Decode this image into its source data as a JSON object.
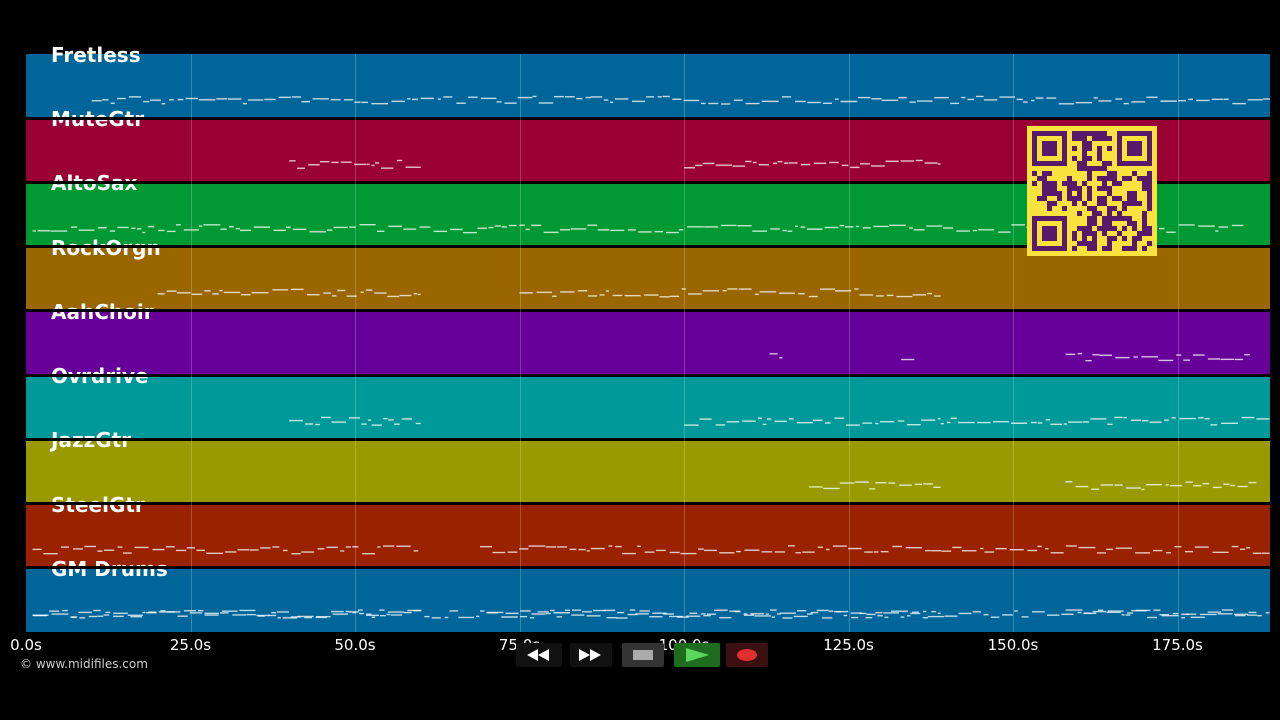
{
  "tracks": [
    {
      "name": "Fretless",
      "color": "#006699"
    },
    {
      "name": "MuteGtr",
      "color": "#990033"
    },
    {
      "name": "AltoSax",
      "color": "#009933"
    },
    {
      "name": "RockOrgn",
      "color": "#996600"
    },
    {
      "name": "AahChoir",
      "color": "#660099"
    },
    {
      "name": "Ovrdrive",
      "color": "#009999"
    },
    {
      "name": "JazzGtr",
      "color": "#999900"
    },
    {
      "name": "SteelGtr",
      "color": "#992200"
    },
    {
      "name": "GM Drums",
      "color": "#006699"
    }
  ],
  "timeline": {
    "ticks": [
      "0.0s",
      "25.0s",
      "50.0s",
      "75.0s",
      "100.0s",
      "125.0s",
      "150.0s",
      "175.0s"
    ],
    "tick_values": [
      0,
      25,
      50,
      75,
      100,
      125,
      150,
      175
    ],
    "max_seconds": 189
  },
  "copyright": "© www.midifiles.com",
  "qr_code": {
    "color": "#f7e23e",
    "module_color": "#5a1a6b"
  },
  "transport": {
    "rewind_icon": "rewind-icon",
    "fast_forward_icon": "fast-forward-icon",
    "stop_icon": "stop-icon",
    "play_icon": "play-icon",
    "record_icon": "record-icon"
  }
}
